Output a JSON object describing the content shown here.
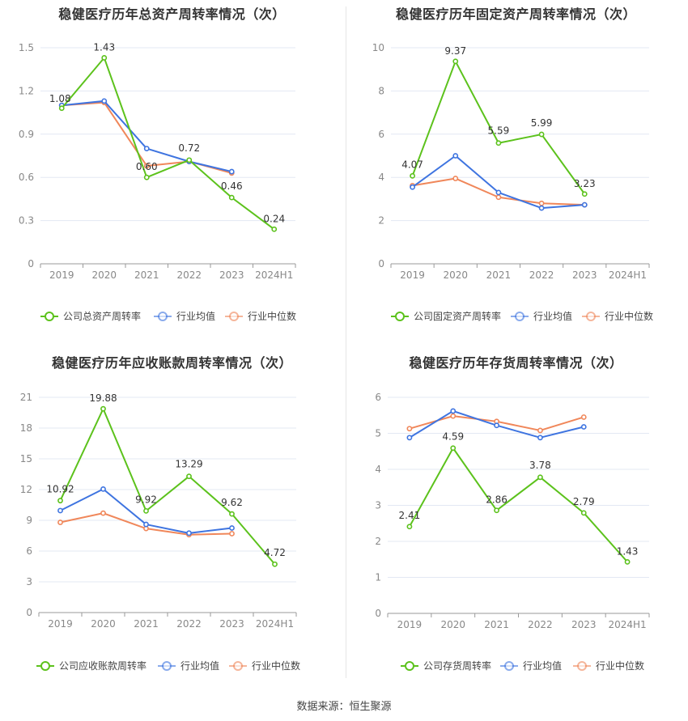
{
  "footer": {
    "source": "数据来源：恒生聚源"
  },
  "colors": {
    "company": "#5cc21c",
    "avg": "#3e74e0",
    "median": "#f0875a",
    "grid": "#e3e8f3",
    "axis": "#9a9a9a"
  },
  "chart_data": [
    {
      "type": "line",
      "title": "稳健医疗历年总资产周转率情况（次）",
      "categories": [
        "2019",
        "2020",
        "2021",
        "2022",
        "2023",
        "2024H1"
      ],
      "ylim": [
        0,
        1.5
      ],
      "yticks": [
        "0",
        "0.3",
        "0.6",
        "0.9",
        "1.2",
        "1.5"
      ],
      "series": [
        {
          "name": "公司总资产周转率",
          "key": "company",
          "values": [
            1.08,
            1.43,
            0.6,
            0.72,
            0.46,
            0.24
          ],
          "labels": [
            "1.08",
            "1.43",
            "0.60",
            "0.72",
            "0.46",
            "0.24"
          ]
        },
        {
          "name": "行业均值",
          "key": "avg",
          "values": [
            1.1,
            1.13,
            0.8,
            0.71,
            0.64,
            null
          ]
        },
        {
          "name": "行业中位数",
          "key": "median",
          "values": [
            1.1,
            1.12,
            0.68,
            0.71,
            0.63,
            null
          ]
        }
      ],
      "legend": "bottom"
    },
    {
      "type": "line",
      "title": "稳健医疗历年固定资产周转率情况（次）",
      "categories": [
        "2019",
        "2020",
        "2021",
        "2022",
        "2023",
        "2024H1"
      ],
      "ylim": [
        0,
        10
      ],
      "yticks": [
        "0",
        "2",
        "4",
        "6",
        "8",
        "10"
      ],
      "series": [
        {
          "name": "公司固定资产周转率",
          "key": "company",
          "values": [
            4.07,
            9.37,
            5.59,
            5.99,
            3.23,
            null
          ],
          "labels": [
            "4.07",
            "9.37",
            "5.59",
            "5.99",
            "3.23",
            ""
          ]
        },
        {
          "name": "行业均值",
          "key": "avg",
          "values": [
            3.55,
            5.0,
            3.3,
            2.58,
            2.73,
            null
          ]
        },
        {
          "name": "行业中位数",
          "key": "median",
          "values": [
            3.62,
            3.95,
            3.08,
            2.8,
            2.73,
            null
          ]
        }
      ],
      "legend": "bottom"
    },
    {
      "type": "line",
      "title": "稳健医疗历年应收账款周转率情况（次）",
      "categories": [
        "2019",
        "2020",
        "2021",
        "2022",
        "2023",
        "2024H1"
      ],
      "ylim": [
        0,
        21
      ],
      "yticks": [
        "0",
        "3",
        "6",
        "9",
        "12",
        "15",
        "18",
        "21"
      ],
      "series": [
        {
          "name": "公司应收账款周转率",
          "key": "company",
          "values": [
            10.92,
            19.88,
            9.92,
            13.29,
            9.62,
            4.72
          ],
          "labels": [
            "10.92",
            "19.88",
            "9.92",
            "13.29",
            "9.62",
            "4.72"
          ]
        },
        {
          "name": "行业均值",
          "key": "avg",
          "values": [
            9.95,
            12.05,
            8.6,
            7.75,
            8.25,
            null
          ]
        },
        {
          "name": "行业中位数",
          "key": "median",
          "values": [
            8.8,
            9.7,
            8.2,
            7.6,
            7.7,
            null
          ]
        }
      ],
      "legend": "bottom"
    },
    {
      "type": "line",
      "title": "稳健医疗历年存货周转率情况（次）",
      "categories": [
        "2019",
        "2020",
        "2021",
        "2022",
        "2023",
        "2024H1"
      ],
      "ylim": [
        0,
        6
      ],
      "yticks": [
        "0",
        "1",
        "2",
        "3",
        "4",
        "5",
        "6"
      ],
      "series": [
        {
          "name": "公司存货周转率",
          "key": "company",
          "values": [
            2.41,
            4.59,
            2.86,
            3.78,
            2.79,
            1.43
          ],
          "labels": [
            "2.41",
            "4.59",
            "2.86",
            "3.78",
            "2.79",
            "1.43"
          ]
        },
        {
          "name": "行业均值",
          "key": "avg",
          "values": [
            4.88,
            5.62,
            5.22,
            4.88,
            5.18,
            null
          ]
        },
        {
          "name": "行业中位数",
          "key": "median",
          "values": [
            5.13,
            5.48,
            5.33,
            5.08,
            5.45,
            null
          ]
        }
      ],
      "legend": "bottom"
    }
  ]
}
